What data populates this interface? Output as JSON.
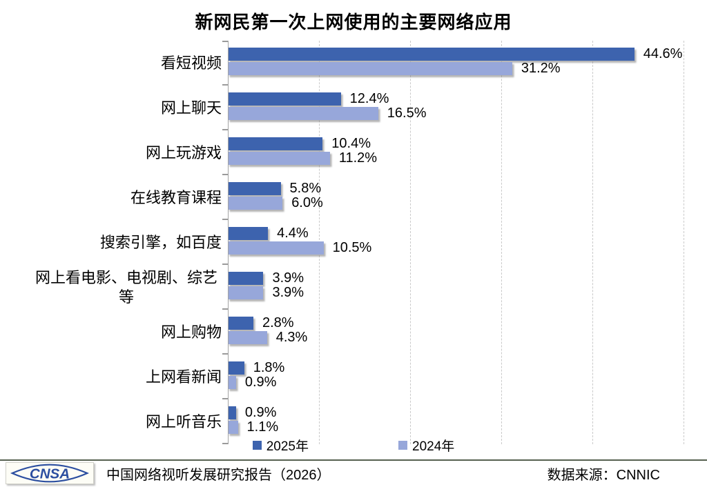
{
  "title": "新网民第一次上网使用的主要网络应用",
  "chart_data": {
    "type": "bar",
    "orientation": "horizontal",
    "title": "新网民第一次上网使用的主要网络应用",
    "categories": [
      "看短视频",
      "网上聊天",
      "网上玩游戏",
      "在线教育课程",
      "搜索引擎，如百度",
      "网上看电影、电视剧、综艺等",
      "网上购物",
      "上网看新闻",
      "网上听音乐"
    ],
    "series": [
      {
        "name": "2025年",
        "color": "#3D63AE",
        "values": [
          44.6,
          12.4,
          10.4,
          5.8,
          4.4,
          3.9,
          2.8,
          1.8,
          0.9
        ]
      },
      {
        "name": "2024年",
        "color": "#97A7DA",
        "values": [
          31.2,
          16.5,
          11.2,
          6.0,
          10.5,
          3.9,
          4.3,
          0.9,
          1.1
        ]
      }
    ],
    "value_suffix": "%",
    "xlim": [
      0,
      50
    ],
    "gridline_interval": 10,
    "grid": "vertical-dashed",
    "legend_position": "bottom"
  },
  "footer": {
    "logo_text": "CNSA",
    "report_title": "中国网络视听发展研究报告（2026）",
    "source_label": "数据来源：CNNIC"
  }
}
